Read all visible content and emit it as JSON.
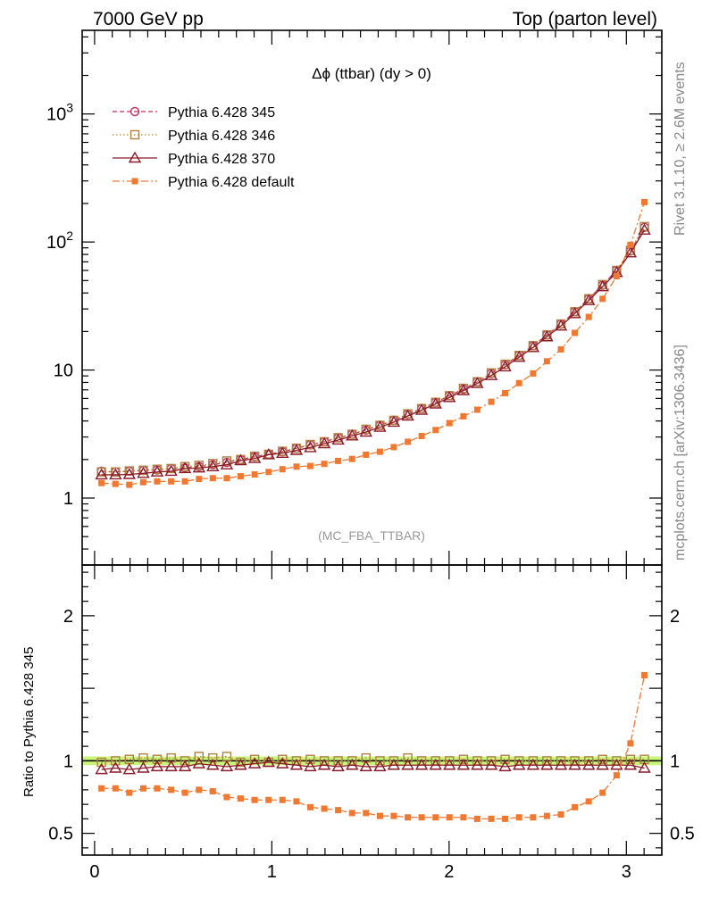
{
  "header": {
    "left": "7000 GeV pp",
    "right": "Top (parton level)"
  },
  "side_labels": {
    "rivet": "Rivet 3.1.10, ≥ 2.6M events",
    "mcplots": "mcplots.cern.ch [arXiv:1306.3436]"
  },
  "chart_data": {
    "type": "line",
    "title": "Δϕ (ttbar) (dy > 0)",
    "watermark": "(MC_FBA_TTBAR)",
    "xlabel": "",
    "ylabel": "",
    "xlim": [
      -0.07,
      3.2
    ],
    "ylim": [
      0.3,
      4500
    ],
    "yscale": "log",
    "x_ticks": [
      "0",
      "1",
      "2",
      "3"
    ],
    "y_ticks": [
      "1",
      "10",
      "10^2",
      "10^3"
    ],
    "legend_position": "top-left",
    "x": [
      0.039,
      0.118,
      0.196,
      0.275,
      0.353,
      0.432,
      0.51,
      0.589,
      0.667,
      0.746,
      0.824,
      0.903,
      0.982,
      1.06,
      1.139,
      1.217,
      1.296,
      1.374,
      1.453,
      1.531,
      1.61,
      1.688,
      1.767,
      1.845,
      1.924,
      2.002,
      2.081,
      2.159,
      2.238,
      2.316,
      2.395,
      2.474,
      2.552,
      2.631,
      2.709,
      2.788,
      2.866,
      2.945,
      3.023,
      3.102
    ],
    "series": [
      {
        "name": "Pythia 6.428 345",
        "color": "#c0305a",
        "values": [
          1.62,
          1.6,
          1.62,
          1.64,
          1.66,
          1.7,
          1.72,
          1.76,
          1.82,
          1.9,
          2.0,
          2.1,
          2.2,
          2.3,
          2.45,
          2.6,
          2.75,
          2.95,
          3.15,
          3.4,
          3.7,
          4.05,
          4.5,
          5.0,
          5.6,
          6.3,
          7.1,
          8.1,
          9.4,
          11.0,
          13.0,
          15.5,
          18.8,
          22.8,
          28.5,
          36.0,
          46.0,
          60.0,
          85.0,
          130.0
        ]
      },
      {
        "name": "Pythia 6.428 346",
        "color": "#b08040",
        "values": [
          1.6,
          1.6,
          1.63,
          1.65,
          1.68,
          1.7,
          1.76,
          1.8,
          1.86,
          1.95,
          2.0,
          2.12,
          2.2,
          2.32,
          2.45,
          2.62,
          2.75,
          2.96,
          3.15,
          3.45,
          3.7,
          4.05,
          4.55,
          5.0,
          5.6,
          6.3,
          7.2,
          8.1,
          9.5,
          11.1,
          13.0,
          15.5,
          18.8,
          22.9,
          28.5,
          36.0,
          46.5,
          60.0,
          86.0,
          132.0
        ]
      },
      {
        "name": "Pythia 6.428 370",
        "color": "#8b1a2a",
        "values": [
          1.52,
          1.52,
          1.53,
          1.56,
          1.6,
          1.62,
          1.7,
          1.72,
          1.76,
          1.82,
          1.96,
          2.04,
          2.18,
          2.24,
          2.36,
          2.48,
          2.66,
          2.84,
          3.06,
          3.28,
          3.58,
          3.92,
          4.38,
          4.86,
          5.44,
          6.1,
          6.92,
          7.86,
          9.06,
          10.6,
          12.6,
          15.0,
          18.2,
          22.1,
          27.6,
          34.9,
          44.8,
          57.9,
          82.4,
          124.0
        ]
      },
      {
        "name": "Pythia 6.428 default",
        "color": "#f07830",
        "values": [
          1.31,
          1.29,
          1.27,
          1.33,
          1.35,
          1.35,
          1.35,
          1.41,
          1.43,
          1.43,
          1.48,
          1.53,
          1.6,
          1.68,
          1.76,
          1.78,
          1.85,
          1.95,
          2.02,
          2.18,
          2.3,
          2.5,
          2.75,
          3.05,
          3.4,
          3.85,
          4.35,
          4.9,
          5.65,
          6.6,
          7.9,
          9.4,
          11.7,
          14.5,
          19.5,
          26.0,
          36.0,
          54.0,
          95.0,
          205.0
        ]
      }
    ],
    "ratio": {
      "ylabel": "Ratio to Pythia 6.428 345",
      "ylim": [
        0.35,
        2.35
      ],
      "y_ticks": [
        "0.5",
        "1",
        "2"
      ],
      "band_color": "#c8f57a",
      "series": [
        {
          "name": "Pythia 6.428 346",
          "values": [
            0.99,
            1.0,
            1.01,
            1.02,
            1.01,
            1.02,
            1.0,
            1.03,
            1.02,
            1.03,
            0.99,
            1.01,
            0.99,
            1.01,
            1.0,
            1.01,
            1.0,
            1.0,
            1.0,
            1.02,
            1.0,
            1.0,
            1.02,
            1.0,
            1.0,
            1.0,
            1.01,
            1.0,
            1.0,
            1.01,
            1.0,
            1.0,
            1.0,
            1.0,
            1.0,
            1.0,
            1.01,
            1.0,
            1.01,
            1.01
          ]
        },
        {
          "name": "Pythia 6.428 370",
          "values": [
            0.94,
            0.95,
            0.94,
            0.95,
            0.96,
            0.96,
            0.96,
            0.98,
            0.97,
            0.96,
            0.97,
            0.98,
            0.99,
            0.98,
            0.97,
            0.96,
            0.97,
            0.96,
            0.97,
            0.96,
            0.96,
            0.97,
            0.97,
            0.97,
            0.97,
            0.97,
            0.97,
            0.97,
            0.97,
            0.96,
            0.97,
            0.97,
            0.97,
            0.97,
            0.97,
            0.97,
            0.97,
            0.97,
            0.97,
            0.95
          ]
        },
        {
          "name": "Pythia 6.428 default",
          "values": [
            0.81,
            0.81,
            0.78,
            0.81,
            0.81,
            0.8,
            0.78,
            0.8,
            0.79,
            0.75,
            0.74,
            0.73,
            0.73,
            0.73,
            0.72,
            0.68,
            0.67,
            0.66,
            0.64,
            0.64,
            0.62,
            0.62,
            0.61,
            0.61,
            0.61,
            0.61,
            0.61,
            0.6,
            0.6,
            0.6,
            0.61,
            0.61,
            0.62,
            0.63,
            0.68,
            0.72,
            0.78,
            0.9,
            1.12,
            1.59
          ]
        }
      ]
    }
  }
}
